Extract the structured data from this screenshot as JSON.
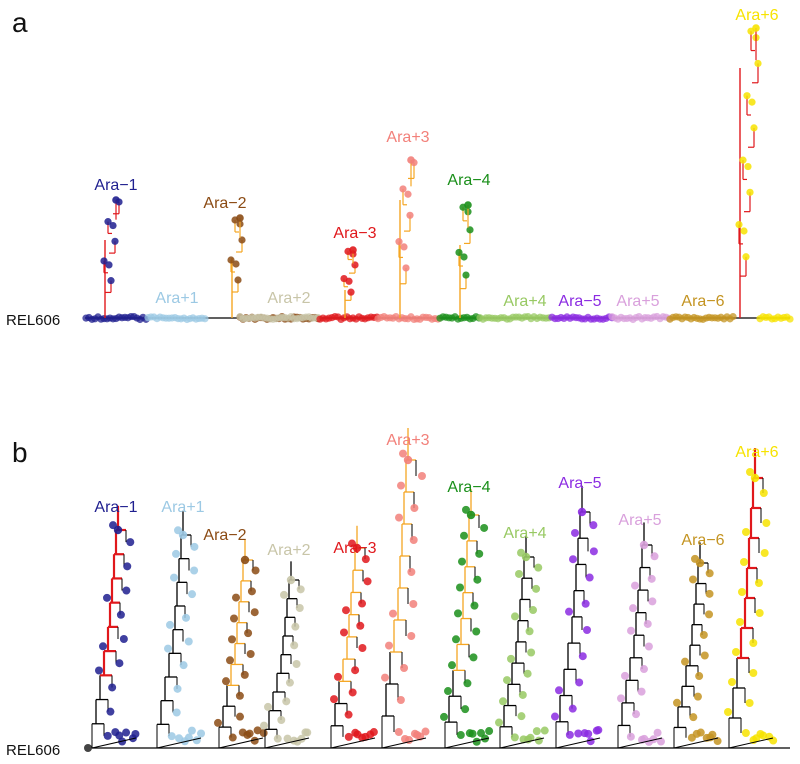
{
  "chart_data": [
    {
      "type": "phylogenetic-tree",
      "panel": "a",
      "root_label": "REL606",
      "populations": [
        {
          "name": "Ara−1",
          "color": "#1f1f8f",
          "mutator": true
        },
        {
          "name": "Ara+1",
          "color": "#9cc9e4",
          "mutator": false
        },
        {
          "name": "Ara−2",
          "color": "#8b4b14",
          "mutator": true
        },
        {
          "name": "Ara+2",
          "color": "#c8c5a8",
          "mutator": false
        },
        {
          "name": "Ara−3",
          "color": "#e0181c",
          "mutator": true
        },
        {
          "name": "Ara+3",
          "color": "#f2807a",
          "mutator": true
        },
        {
          "name": "Ara−4",
          "color": "#1a8f1a",
          "mutator": true
        },
        {
          "name": "Ara+4",
          "color": "#98c963",
          "mutator": false
        },
        {
          "name": "Ara−5",
          "color": "#8b2be2",
          "mutator": false
        },
        {
          "name": "Ara+5",
          "color": "#d9a0dc",
          "mutator": false
        },
        {
          "name": "Ara−6",
          "color": "#c49422",
          "mutator": false
        },
        {
          "name": "Ara+6",
          "color": "#f7e300",
          "mutator": true
        }
      ]
    },
    {
      "type": "phylogenetic-tree",
      "panel": "b",
      "root_label": "REL606",
      "populations": [
        {
          "name": "Ara−1",
          "color": "#1f1f8f",
          "mutator": true
        },
        {
          "name": "Ara+1",
          "color": "#9cc9e4",
          "mutator": false
        },
        {
          "name": "Ara−2",
          "color": "#8b4b14",
          "mutator": true
        },
        {
          "name": "Ara+2",
          "color": "#c8c5a8",
          "mutator": false
        },
        {
          "name": "Ara−3",
          "color": "#e0181c",
          "mutator": true
        },
        {
          "name": "Ara+3",
          "color": "#f2807a",
          "mutator": true
        },
        {
          "name": "Ara−4",
          "color": "#1a8f1a",
          "mutator": true
        },
        {
          "name": "Ara+4",
          "color": "#98c963",
          "mutator": false
        },
        {
          "name": "Ara−5",
          "color": "#8b2be2",
          "mutator": false
        },
        {
          "name": "Ara+5",
          "color": "#d9a0dc",
          "mutator": false
        },
        {
          "name": "Ara−6",
          "color": "#c49422",
          "mutator": false
        },
        {
          "name": "Ara+6",
          "color": "#f7e300",
          "mutator": true
        }
      ]
    }
  ],
  "legend_colors": {
    "branch": "#000000",
    "mutator_orange": "#f5a623",
    "mutator_red": "#e0181c"
  }
}
